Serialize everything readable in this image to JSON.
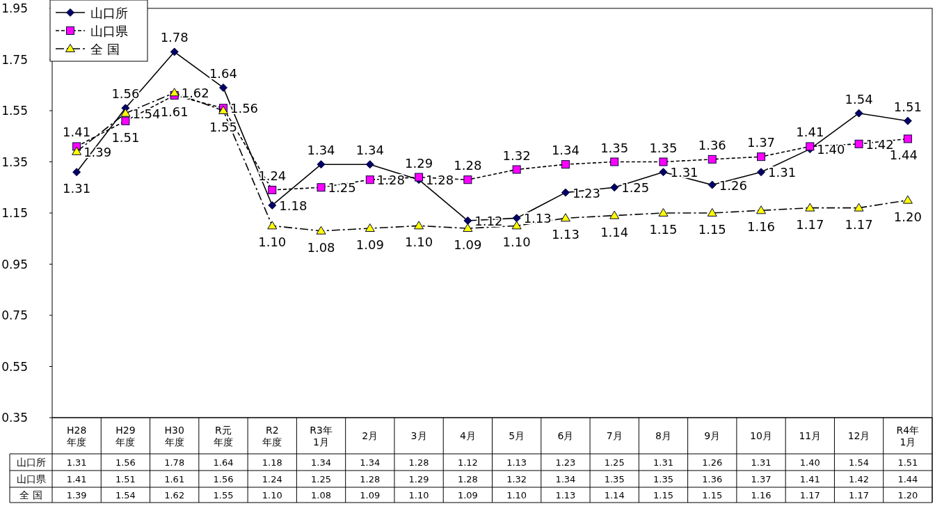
{
  "chart_data": {
    "type": "line",
    "categories": [
      "H28年度",
      "H29年度",
      "H30年度",
      "R元年度",
      "R2年度",
      "R3年1月",
      "2月",
      "3月",
      "4月",
      "5月",
      "6月",
      "7月",
      "8月",
      "9月",
      "10月",
      "11月",
      "12月",
      "R4年1月"
    ],
    "series": [
      {
        "name": "山口所",
        "color": "#000066",
        "marker": "diamond",
        "line_style": "solid",
        "values": [
          1.31,
          1.56,
          1.78,
          1.64,
          1.18,
          1.34,
          1.34,
          1.28,
          1.12,
          1.13,
          1.23,
          1.25,
          1.31,
          1.26,
          1.31,
          1.4,
          1.54,
          1.51
        ],
        "value_labels": [
          "1.31",
          "1.56",
          "1.78",
          "1.64",
          "1.18",
          "1.34",
          "1.34",
          "1.28",
          "1.12",
          "1.13",
          "1.23",
          "1.25",
          "1.31",
          "1.26",
          "1.31",
          "1.40",
          "1.54",
          "1.51"
        ]
      },
      {
        "name": "山口県",
        "color": "#ff00ff",
        "marker": "square",
        "line_style": "dashed",
        "values": [
          1.41,
          1.51,
          1.61,
          1.56,
          1.24,
          1.25,
          1.28,
          1.29,
          1.28,
          1.32,
          1.34,
          1.35,
          1.35,
          1.36,
          1.37,
          1.41,
          1.42,
          1.44
        ],
        "value_labels": [
          "1.41",
          "1.51",
          "1.61",
          "1.56",
          "1.24",
          "1.25",
          "1.28",
          "1.29",
          "1.28",
          "1.32",
          "1.34",
          "1.35",
          "1.35",
          "1.36",
          "1.37",
          "1.41",
          "1.42",
          "1.44"
        ]
      },
      {
        "name": "全 国",
        "color": "#ffff00",
        "marker": "triangle",
        "line_style": "dashdot",
        "values": [
          1.39,
          1.54,
          1.62,
          1.55,
          1.1,
          1.08,
          1.09,
          1.1,
          1.09,
          1.1,
          1.13,
          1.14,
          1.15,
          1.15,
          1.16,
          1.17,
          1.17,
          1.2
        ],
        "value_labels": [
          "1.39",
          "1.54",
          "1.62",
          "1.55",
          "1.10",
          "1.08",
          "1.09",
          "1.10",
          "1.09",
          "1.10",
          "1.13",
          "1.14",
          "1.15",
          "1.15",
          "1.16",
          "1.17",
          "1.17",
          "1.20"
        ]
      }
    ],
    "ylim": [
      0.35,
      1.95
    ],
    "yticks": [
      0.35,
      0.55,
      0.75,
      0.95,
      1.15,
      1.35,
      1.55,
      1.75,
      1.95
    ],
    "grid": false,
    "legend": "top left"
  }
}
